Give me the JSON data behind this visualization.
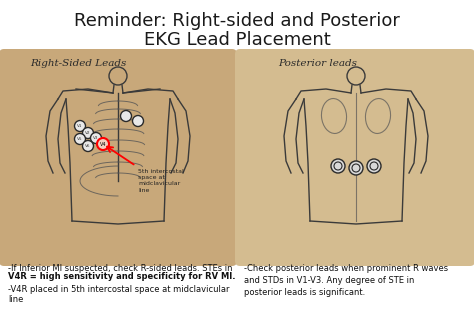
{
  "title_line1": "Reminder: Right-sided and Posterior",
  "title_line2": "EKG Lead Placement",
  "title_fontsize": 13,
  "title_color": "#1a1a1a",
  "bg_color": "#ffffff",
  "left_label": "Right-Sided Leads",
  "right_label": "Posterior leads",
  "left_caption_pre": "-If Inferior MI suspected, check R-sided leads. STEs in",
  "left_caption_bold": "V4R = high sensitivity and specificity for RV MI.",
  "left_caption_post": "-V4R placed in 5th intercostal space at midclavicular\nline",
  "right_caption": "-Check posterior leads when prominent R waves\nand STDs in V1-V3. Any degree of STE in\nposterior leads is significant.",
  "annotation": "5th intercostal\nspace at\nmidclavicular\nline",
  "caption_fontsize": 6.0,
  "panel_color": "#c8a87a"
}
